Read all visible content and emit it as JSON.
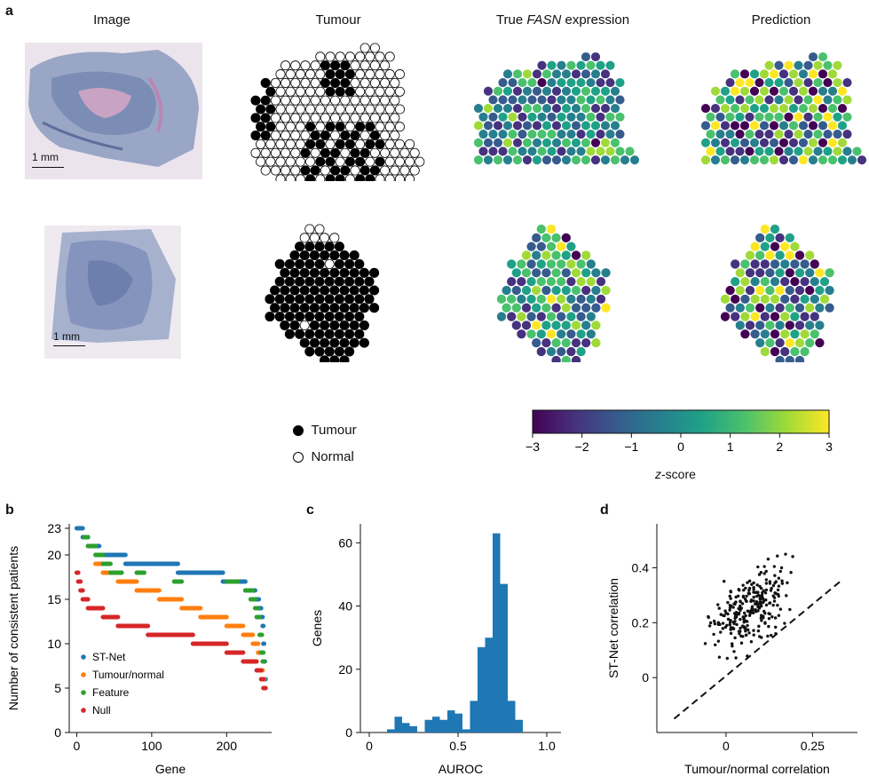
{
  "panel_a": {
    "letter": "a",
    "columns": [
      "Image",
      "Tumour",
      "True",
      "FASN",
      "expression",
      "Prediction"
    ],
    "scale_bar_label": "1 mm",
    "legend": {
      "tumour": "Tumour",
      "normal": "Normal"
    },
    "colorbar": {
      "ticks": [
        "−3",
        "−2",
        "−1",
        "0",
        "1",
        "2",
        "3"
      ],
      "label_italic": "z",
      "label_rest": "-score",
      "palette": [
        "#440154",
        "#46327e",
        "#365c8d",
        "#277f8e",
        "#1fa187",
        "#4ac16d",
        "#a0da39",
        "#fde725"
      ]
    },
    "colors": {
      "tumour": "#000000",
      "normal": "#ffffff"
    }
  },
  "panel_b": {
    "letter": "b",
    "chart_data": {
      "type": "scatter",
      "xlabel": "Gene",
      "ylabel": "Number of consistent patients",
      "xticks": [
        "0",
        "100",
        "200"
      ],
      "yticks": [
        "0",
        "5",
        "10",
        "15",
        "20",
        "23"
      ],
      "xlim": [
        -10,
        260
      ],
      "ylim": [
        0,
        23.5
      ],
      "series": [
        {
          "name": "ST-Net",
          "color": "#1f77b4",
          "segments": [
            [
              0,
              8,
              23
            ],
            [
              8,
              15,
              22
            ],
            [
              15,
              30,
              21
            ],
            [
              30,
              65,
              20
            ],
            [
              65,
              135,
              19
            ],
            [
              135,
              195,
              18
            ],
            [
              195,
              225,
              17
            ],
            [
              225,
              238,
              16
            ],
            [
              238,
              243,
              15
            ],
            [
              243,
              246,
              14
            ],
            [
              246,
              248,
              13
            ],
            [
              248,
              249,
              12
            ],
            [
              249,
              250,
              10
            ],
            [
              250,
              251,
              8
            ],
            [
              251,
              252,
              6
            ]
          ]
        },
        {
          "name": "Tumour/normal",
          "color": "#ff7f0e",
          "segments": [
            [
              25,
              35,
              19
            ],
            [
              35,
              55,
              18
            ],
            [
              55,
              80,
              17
            ],
            [
              80,
              110,
              16
            ],
            [
              110,
              140,
              15
            ],
            [
              140,
              165,
              14
            ],
            [
              165,
              200,
              13
            ],
            [
              200,
              222,
              12
            ],
            [
              222,
              235,
              11
            ],
            [
              235,
              242,
              10
            ],
            [
              242,
              246,
              9
            ],
            [
              246,
              248,
              7
            ],
            [
              248,
              250,
              6
            ]
          ]
        },
        {
          "name": "Feature",
          "color": "#2ca02c",
          "segments": [
            [
              10,
              15,
              22
            ],
            [
              15,
              25,
              21
            ],
            [
              25,
              35,
              20
            ],
            [
              35,
              45,
              19
            ],
            [
              45,
              60,
              18
            ],
            [
              80,
              90,
              18
            ],
            [
              130,
              140,
              17
            ],
            [
              200,
              215,
              17
            ],
            [
              225,
              235,
              16
            ],
            [
              232,
              238,
              15
            ],
            [
              238,
              242,
              14
            ],
            [
              240,
              244,
              13
            ],
            [
              244,
              247,
              11
            ],
            [
              246,
              249,
              9
            ],
            [
              248,
              250,
              8
            ]
          ]
        },
        {
          "name": "Null",
          "color": "#d62728",
          "segments": [
            [
              0,
              2,
              18
            ],
            [
              2,
              5,
              17
            ],
            [
              5,
              8,
              16
            ],
            [
              8,
              15,
              15
            ],
            [
              15,
              35,
              14
            ],
            [
              35,
              55,
              13
            ],
            [
              55,
              95,
              12
            ],
            [
              95,
              155,
              11
            ],
            [
              155,
              200,
              10
            ],
            [
              200,
              222,
              9
            ],
            [
              222,
              240,
              8
            ],
            [
              240,
              246,
              7
            ],
            [
              246,
              249,
              6
            ],
            [
              249,
              252,
              5
            ]
          ]
        }
      ]
    }
  },
  "panel_c": {
    "letter": "c",
    "chart_data": {
      "type": "bar",
      "xlabel": "AUROC",
      "ylabel": "Genes",
      "xticks": [
        "0",
        "0.5",
        "1.0"
      ],
      "yticks": [
        "0",
        "20",
        "40",
        "60"
      ],
      "xlim": [
        -0.05,
        1.08
      ],
      "ylim": [
        0,
        66
      ],
      "color": "#1f77b4",
      "bins_start": 0.1,
      "bin_width": 0.0425,
      "values": [
        1,
        5,
        3,
        2,
        0,
        4,
        5,
        4,
        7,
        6,
        1,
        10,
        27,
        30,
        63,
        47,
        10,
        4
      ]
    }
  },
  "panel_d": {
    "letter": "d",
    "chart_data": {
      "type": "scatter",
      "xlabel": "Tumour/normal correlation",
      "ylabel": "ST-Net correlation",
      "xticks": [
        "0",
        "0.25"
      ],
      "yticks": [
        "0",
        "0.2",
        "0.4"
      ],
      "xlim": [
        -0.2,
        0.38
      ],
      "ylim": [
        -0.2,
        0.56
      ],
      "diagonal": true
    }
  }
}
